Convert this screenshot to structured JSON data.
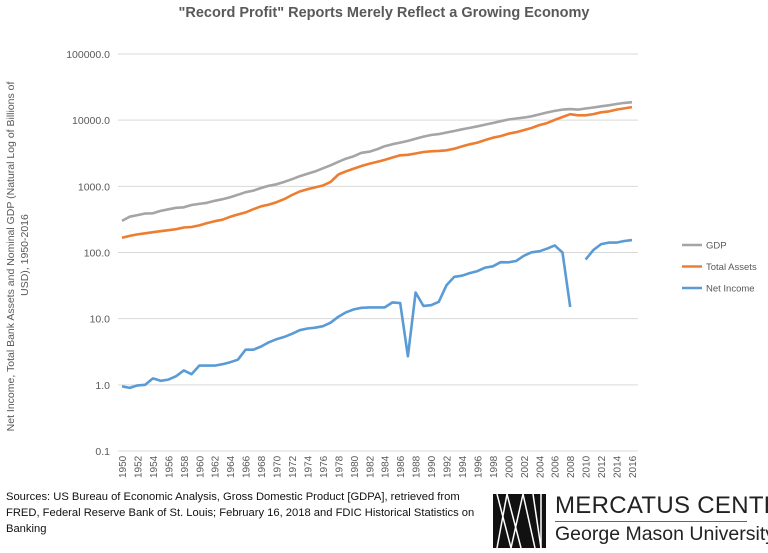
{
  "chart_data": {
    "type": "line",
    "title": "\"Record Profit\" Reports Merely Reflect a Growing Economy",
    "xlabel": "",
    "ylabel": "Net Income, Total Bank Assets and Nominal GDP (Natural Log of Billions of USD), 1950-2016",
    "y_scale": "log",
    "ylim": [
      0.1,
      100000
    ],
    "y_ticks": [
      "0.1",
      "1.0",
      "10.0",
      "100.0",
      "1000.0",
      "10000.0",
      "100000.0"
    ],
    "grid": true,
    "legend_placement": "right",
    "x": [
      1950,
      1951,
      1952,
      1953,
      1954,
      1955,
      1956,
      1957,
      1958,
      1959,
      1960,
      1961,
      1962,
      1963,
      1964,
      1965,
      1966,
      1967,
      1968,
      1969,
      1970,
      1971,
      1972,
      1973,
      1974,
      1975,
      1976,
      1977,
      1978,
      1979,
      1980,
      1981,
      1982,
      1983,
      1984,
      1985,
      1986,
      1987,
      1988,
      1989,
      1990,
      1991,
      1992,
      1993,
      1994,
      1995,
      1996,
      1997,
      1998,
      1999,
      2000,
      2001,
      2002,
      2003,
      2004,
      2005,
      2006,
      2007,
      2008,
      2009,
      2010,
      2011,
      2012,
      2013,
      2014,
      2015,
      2016
    ],
    "x_tick_labels": [
      "1950",
      "1952",
      "1954",
      "1956",
      "1958",
      "1960",
      "1962",
      "1964",
      "1966",
      "1968",
      "1970",
      "1972",
      "1974",
      "1976",
      "1978",
      "1980",
      "1982",
      "1984",
      "1986",
      "1988",
      "1990",
      "1992",
      "1994",
      "1996",
      "1998",
      "2000",
      "2002",
      "2004",
      "2006",
      "2008",
      "2010",
      "2012",
      "2014",
      "2016"
    ],
    "series": [
      {
        "name": "GDP",
        "color": "#a5a5a5",
        "values": [
          300,
          347,
          367,
          389,
          391,
          426,
          450,
          474,
          482,
          522,
          543,
          563,
          605,
          639,
          686,
          744,
          815,
          862,
          943,
          1019,
          1073,
          1165,
          1280,
          1425,
          1545,
          1684,
          1873,
          2082,
          2352,
          2627,
          2857,
          3207,
          3343,
          3634,
          4037,
          4339,
          4580,
          4855,
          5236,
          5642,
          5963,
          6158,
          6520,
          6859,
          7287,
          7639,
          8073,
          8577,
          9062,
          9631,
          10252,
          10582,
          10936,
          11458,
          12214,
          13037,
          13815,
          14452,
          14713,
          14449,
          14992,
          15543,
          16197,
          16785,
          17527,
          18225,
          18715
        ]
      },
      {
        "name": "Total Assets",
        "color": "#ed7d31",
        "values": [
          167,
          178,
          188,
          195,
          203,
          210,
          217,
          225,
          239,
          243,
          257,
          278,
          297,
          313,
          346,
          375,
          403,
          451,
          500,
          530,
          576,
          641,
          740,
          835,
          906,
          964,
          1030,
          1166,
          1508,
          1690,
          1856,
          2029,
          2194,
          2342,
          2508,
          2731,
          2941,
          2999,
          3131,
          3299,
          3389,
          3431,
          3506,
          3706,
          4011,
          4313,
          4578,
          5015,
          5442,
          5735,
          6246,
          6569,
          7076,
          7602,
          8413,
          9040,
          10090,
          11176,
          12309,
          11828,
          11865,
          12353,
          13128,
          13551,
          14427,
          15065,
          15775
        ]
      },
      {
        "name": "Net Income",
        "color": "#5b9bd5",
        "values": [
          0.95,
          0.9,
          0.98,
          1.0,
          1.25,
          1.15,
          1.2,
          1.35,
          1.65,
          1.45,
          1.95,
          1.95,
          1.95,
          2.05,
          2.2,
          2.4,
          3.4,
          3.4,
          3.8,
          4.4,
          4.9,
          5.3,
          5.9,
          6.7,
          7.1,
          7.3,
          7.7,
          8.7,
          10.7,
          12.5,
          13.8,
          14.6,
          14.8,
          14.8,
          14.8,
          17.6,
          17.2,
          2.7,
          24.9,
          15.6,
          16.0,
          18.0,
          32.0,
          43.0,
          44.6,
          48.8,
          52.4,
          59.2,
          61.9,
          71.4,
          71.0,
          74.3,
          89.3,
          100.7,
          104.2,
          114.0,
          128.0,
          100.0,
          15.0,
          null,
          78.0,
          109.0,
          134.0,
          141.0,
          141.0,
          149.0,
          154.0
        ]
      }
    ]
  },
  "sources": "Sources: US Bureau of Economic Analysis, Gross Domestic Product [GDPA], retrieved from FRED, Federal Reserve Bank of St. Louis; February 16, 2018 and FDIC Historical Statistics on Banking",
  "logo": {
    "line1": "MERCATUS CENTER",
    "line2": "George Mason University"
  }
}
